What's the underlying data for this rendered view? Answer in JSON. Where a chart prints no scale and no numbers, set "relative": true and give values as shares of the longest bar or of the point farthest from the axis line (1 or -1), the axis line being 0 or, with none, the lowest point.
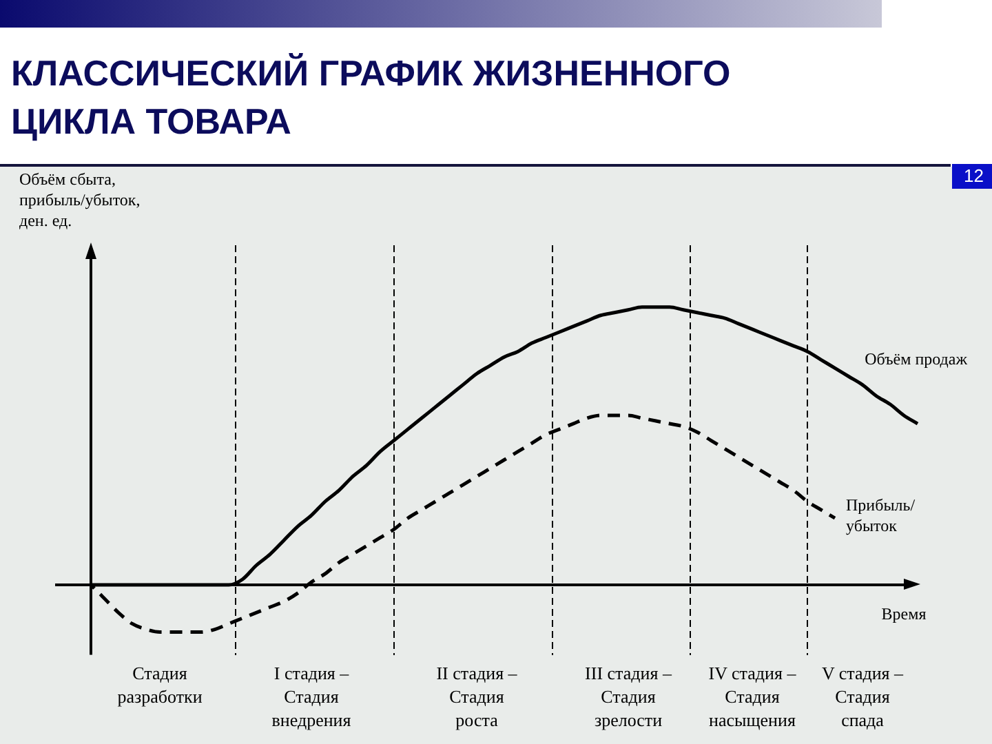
{
  "chart_data": {
    "type": "line",
    "title": "КЛАССИЧЕСКИЙ ГРАФИК ЖИЗНЕННОГО ЦИКЛА ТОВАРА",
    "xlabel": "Время",
    "ylabel": "Объём сбыта, прибыль/убыток, ден. ед.",
    "annotations": [
      "12"
    ],
    "relative": true,
    "grid": "x",
    "categories": [
      null,
      null,
      null,
      null,
      null,
      "Стадия разработки",
      null,
      null,
      null,
      null,
      null,
      null,
      null,
      null,
      null,
      null,
      "I стадия – Стадия внедрения",
      null,
      null,
      null,
      null,
      null,
      null,
      null,
      null,
      null,
      null,
      null,
      "II стадия – Стадия роста",
      null,
      null,
      null,
      null,
      null,
      null,
      null,
      null,
      null,
      null,
      "III стадия – Стадия зрелости",
      null,
      null,
      null,
      null,
      null,
      null,
      null,
      null,
      "IV стадия – Стадия насыщения",
      null,
      null,
      null,
      null,
      null,
      null,
      null,
      "V стадия – Стадия спада",
      null,
      null,
      null,
      null
    ],
    "series": [
      {
        "name": "Объём продаж",
        "color": "#000000",
        "line_style": "solid",
        "values": [
          0,
          0,
          0,
          0,
          0,
          0,
          0,
          0,
          0,
          0,
          0,
          0.02,
          0.07,
          0.11,
          0.16,
          0.21,
          0.25,
          0.3,
          0.34,
          0.39,
          0.43,
          0.48,
          0.52,
          0.56,
          0.6,
          0.64,
          0.68,
          0.72,
          0.76,
          0.79,
          0.82,
          0.84,
          0.87,
          0.89,
          0.91,
          0.93,
          0.95,
          0.97,
          0.98,
          0.99,
          1,
          1,
          1,
          0.99,
          0.98,
          0.97,
          0.96,
          0.94,
          0.92,
          0.9,
          0.88,
          0.86,
          0.84,
          0.81,
          0.78,
          0.75,
          0.72,
          0.68,
          0.65,
          0.61,
          0.58
        ]
      },
      {
        "name": "Прибыль/убыток",
        "color": "#000000",
        "line_style": "dashed",
        "values": [
          0,
          -0.05,
          -0.1,
          -0.14,
          -0.16,
          -0.17,
          -0.17,
          -0.17,
          -0.17,
          -0.16,
          -0.14,
          -0.12,
          -0.1,
          -0.08,
          -0.06,
          -0.03,
          0.01,
          0.04,
          0.08,
          0.11,
          0.14,
          0.17,
          0.2,
          0.24,
          0.27,
          0.3,
          0.33,
          0.36,
          0.39,
          0.42,
          0.45,
          0.48,
          0.51,
          0.54,
          0.56,
          0.58,
          0.6,
          0.61,
          0.61,
          0.61,
          0.6,
          0.59,
          0.58,
          0.57,
          0.55,
          0.52,
          0.49,
          0.46,
          0.43,
          0.4,
          0.37,
          0.34,
          0.3,
          0.27,
          0.24,
          null,
          null,
          null,
          null,
          null,
          null
        ]
      }
    ]
  }
}
